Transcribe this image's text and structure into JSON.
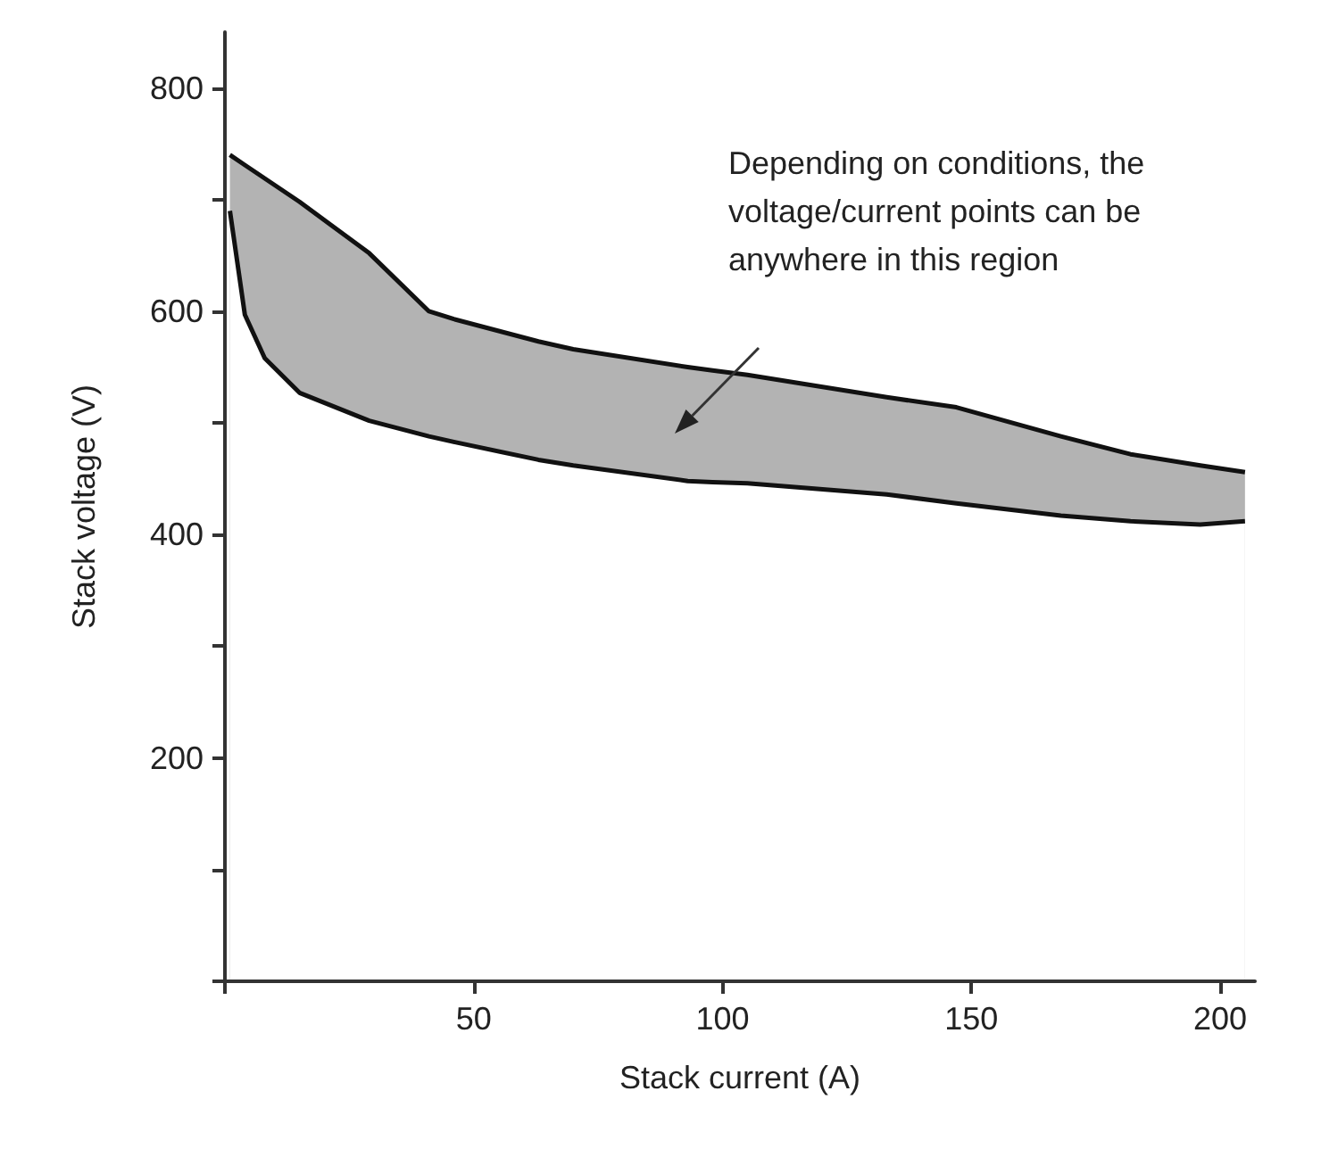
{
  "chart_data": {
    "type": "area",
    "xlabel": "Stack current (A)",
    "ylabel": "Stack voltage (V)",
    "xlim": [
      0,
      207
    ],
    "ylim": [
      0,
      850
    ],
    "xticks": [
      {
        "value": 0,
        "label": null
      },
      50,
      100,
      150,
      200
    ],
    "yticks": [
      {
        "value": 0,
        "label": null
      },
      {
        "value": 100,
        "label": null
      },
      200,
      {
        "value": 300,
        "label": null
      },
      400,
      {
        "value": 500,
        "label": null
      },
      600,
      {
        "value": 700,
        "label": null
      },
      800
    ],
    "grid": false,
    "series": [
      {
        "color": "#b3b3b3",
        "x": [
          1,
          4,
          8,
          15,
          29,
          41,
          46,
          63,
          70,
          93,
          98,
          105,
          133,
          147,
          168,
          182,
          196,
          205
        ],
        "values": [
          740,
          731,
          719,
          698,
          652,
          600,
          593,
          573,
          566,
          550,
          547,
          543,
          523,
          514,
          488,
          472,
          462,
          456
        ]
      },
      {
        "color": "#ffffff",
        "x": [
          1,
          4,
          8,
          15,
          29,
          41,
          46,
          63,
          70,
          93,
          98,
          105,
          133,
          147,
          168,
          182,
          196,
          205
        ],
        "values": [
          690,
          597,
          558,
          527,
          502,
          488,
          483,
          467,
          462,
          448,
          447,
          446,
          436,
          428,
          417,
          412,
          409,
          412
        ]
      }
    ],
    "annotations": [
      "Depending on conditions, the\nvoltage/current points can be\nanywhere in this region"
    ]
  }
}
